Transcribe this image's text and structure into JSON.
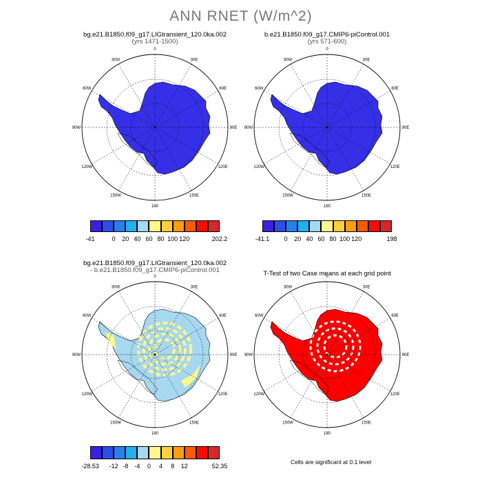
{
  "main_title": "ANN RNET (W/m^2)",
  "panels": [
    {
      "title": "bg.e21.B1850.f09_g17.LIGtransient_120.0ka.002",
      "subtitle": "(yrs 1471-1500)"
    },
    {
      "title": "b.e21.B1850.f09_g17.CMIP6-piControl.001",
      "subtitle": "(yrs 571-600)"
    },
    {
      "title": "bg.e21.B1850.f09_g17.LIGtransient_120.0ka.002",
      "subtitle": "- b.e21.B1850.f09_g17.CMIP6-piControl.001"
    },
    {
      "title": "T-Test of two Case means at each grid point",
      "subtitle": ""
    }
  ],
  "lon_labels": [
    "0",
    "30E",
    "60E",
    "90E",
    "120E",
    "150E",
    "180",
    "150W",
    "120W",
    "90W",
    "60W",
    "30W"
  ],
  "colorbars": [
    {
      "colors": [
        "#3a1fe6",
        "#2b4ee8",
        "#2a7fef",
        "#1fb2ee",
        "#a6d8f0",
        "#fff68c",
        "#fecf3e",
        "#fe9d10",
        "#ff5a00",
        "#ff0a00",
        "#d52828"
      ],
      "labels": [
        "-41",
        "0",
        "20",
        "40",
        "60",
        "80",
        "100",
        "120",
        "202.2"
      ]
    },
    {
      "colors": [
        "#3a1fe6",
        "#2b4ee8",
        "#2a7fef",
        "#1fb2ee",
        "#a6d8f0",
        "#fff68c",
        "#fecf3e",
        "#fe9d10",
        "#ff5a00",
        "#ff0a00",
        "#d52828"
      ],
      "labels": [
        "-41.1",
        "0",
        "20",
        "40",
        "60",
        "80",
        "100",
        "120",
        "198"
      ]
    },
    {
      "colors": [
        "#3a1fe6",
        "#2b4ee8",
        "#2a7fef",
        "#1fb2ee",
        "#a6d8f0",
        "#fff68c",
        "#fecf3e",
        "#fe9d10",
        "#ff5a00",
        "#ff0a00",
        "#d52828"
      ],
      "labels": [
        "-28.53",
        "-12",
        "-8",
        "-4",
        "0",
        "4",
        "8",
        "12",
        "52.35"
      ]
    }
  ],
  "significance_note": "Cells are significant at 0.1 level",
  "colors": {
    "panel_fill_1": "#3530e8",
    "panel_fill_2": "#3530e8",
    "diff_fill": "#a6d8f0",
    "diff_yellow": "#fff68c",
    "ttest_fill": "#ff0000"
  }
}
